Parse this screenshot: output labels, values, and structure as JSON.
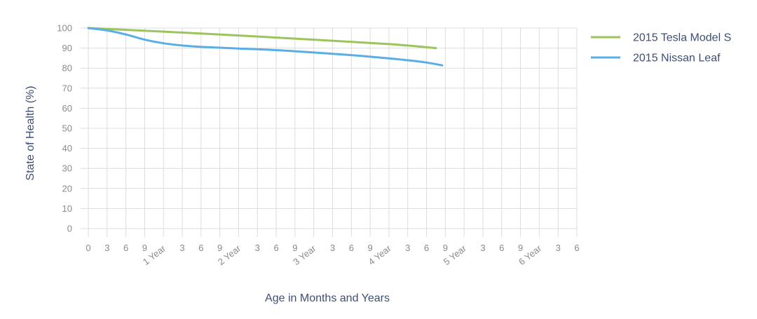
{
  "chart_data": {
    "type": "line",
    "title": "",
    "xlabel": "Age in Months and Years",
    "ylabel": "State of Health (%)",
    "ylim": [
      0,
      100
    ],
    "y_ticks": [
      "100",
      "90",
      "80",
      "70",
      "60",
      "50",
      "40",
      "30",
      "20",
      "10",
      "0"
    ],
    "x_ticks": [
      "0",
      "3",
      "6",
      "9",
      "1 Year",
      "3",
      "6",
      "9",
      "2 Year",
      "3",
      "6",
      "9",
      "3 Year",
      "3",
      "6",
      "9",
      "4 Year",
      "3",
      "6",
      "9",
      "5 Year",
      "3",
      "6",
      "9",
      "6 Year",
      "3",
      "6"
    ],
    "x_unit": "months",
    "xlim": [
      0,
      78
    ],
    "grid": true,
    "legend_position": "right",
    "series": [
      {
        "name": "2015 Tesla Model S",
        "color": "#9bc45a",
        "x": [
          0,
          12,
          24,
          36,
          48,
          55.5
        ],
        "y": [
          100,
          98.2,
          96.3,
          94.2,
          92.0,
          90.0
        ]
      },
      {
        "name": "2015 Nissan Leaf",
        "color": "#5aaee6",
        "x": [
          0,
          3,
          6,
          9,
          12,
          15,
          18,
          24,
          30,
          36,
          42,
          48,
          52,
          54,
          56.5
        ],
        "y": [
          100,
          98.8,
          96.8,
          94.2,
          92.4,
          91.3,
          90.6,
          89.8,
          89.0,
          87.8,
          86.5,
          84.9,
          83.6,
          82.8,
          81.4
        ]
      }
    ]
  }
}
